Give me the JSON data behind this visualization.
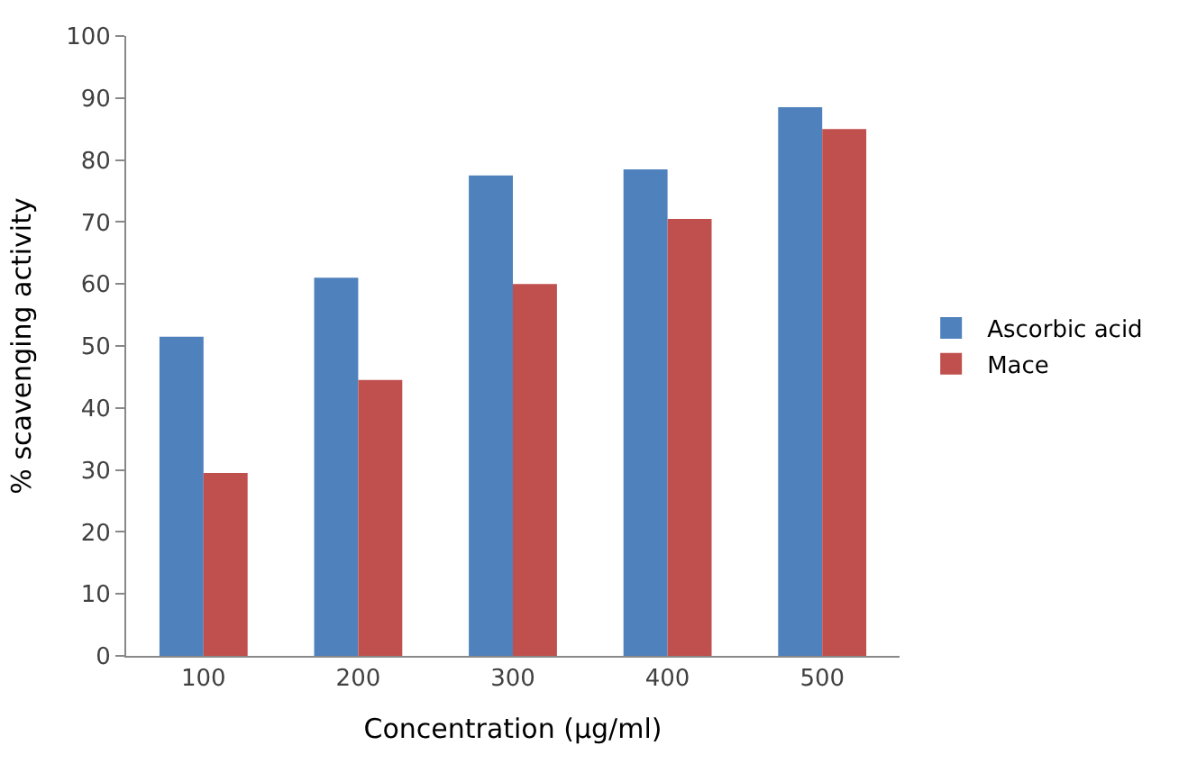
{
  "chart_data": {
    "type": "bar",
    "xlabel": "Concentration (µg/ml)",
    "ylabel": "% scavenging activity",
    "categories": [
      "100",
      "200",
      "300",
      "400",
      "500"
    ],
    "series": [
      {
        "name": "Ascorbic acid",
        "color": "#4f81bd",
        "values": [
          51.5,
          61,
          77.5,
          78.5,
          88.5
        ]
      },
      {
        "name": "Mace",
        "color": "#c0504d",
        "values": [
          29.5,
          44.5,
          60,
          70.5,
          85
        ]
      }
    ],
    "ylim": [
      0,
      100
    ],
    "yticks": [
      0,
      10,
      20,
      30,
      40,
      50,
      60,
      70,
      80,
      90,
      100
    ],
    "legend": "right"
  }
}
